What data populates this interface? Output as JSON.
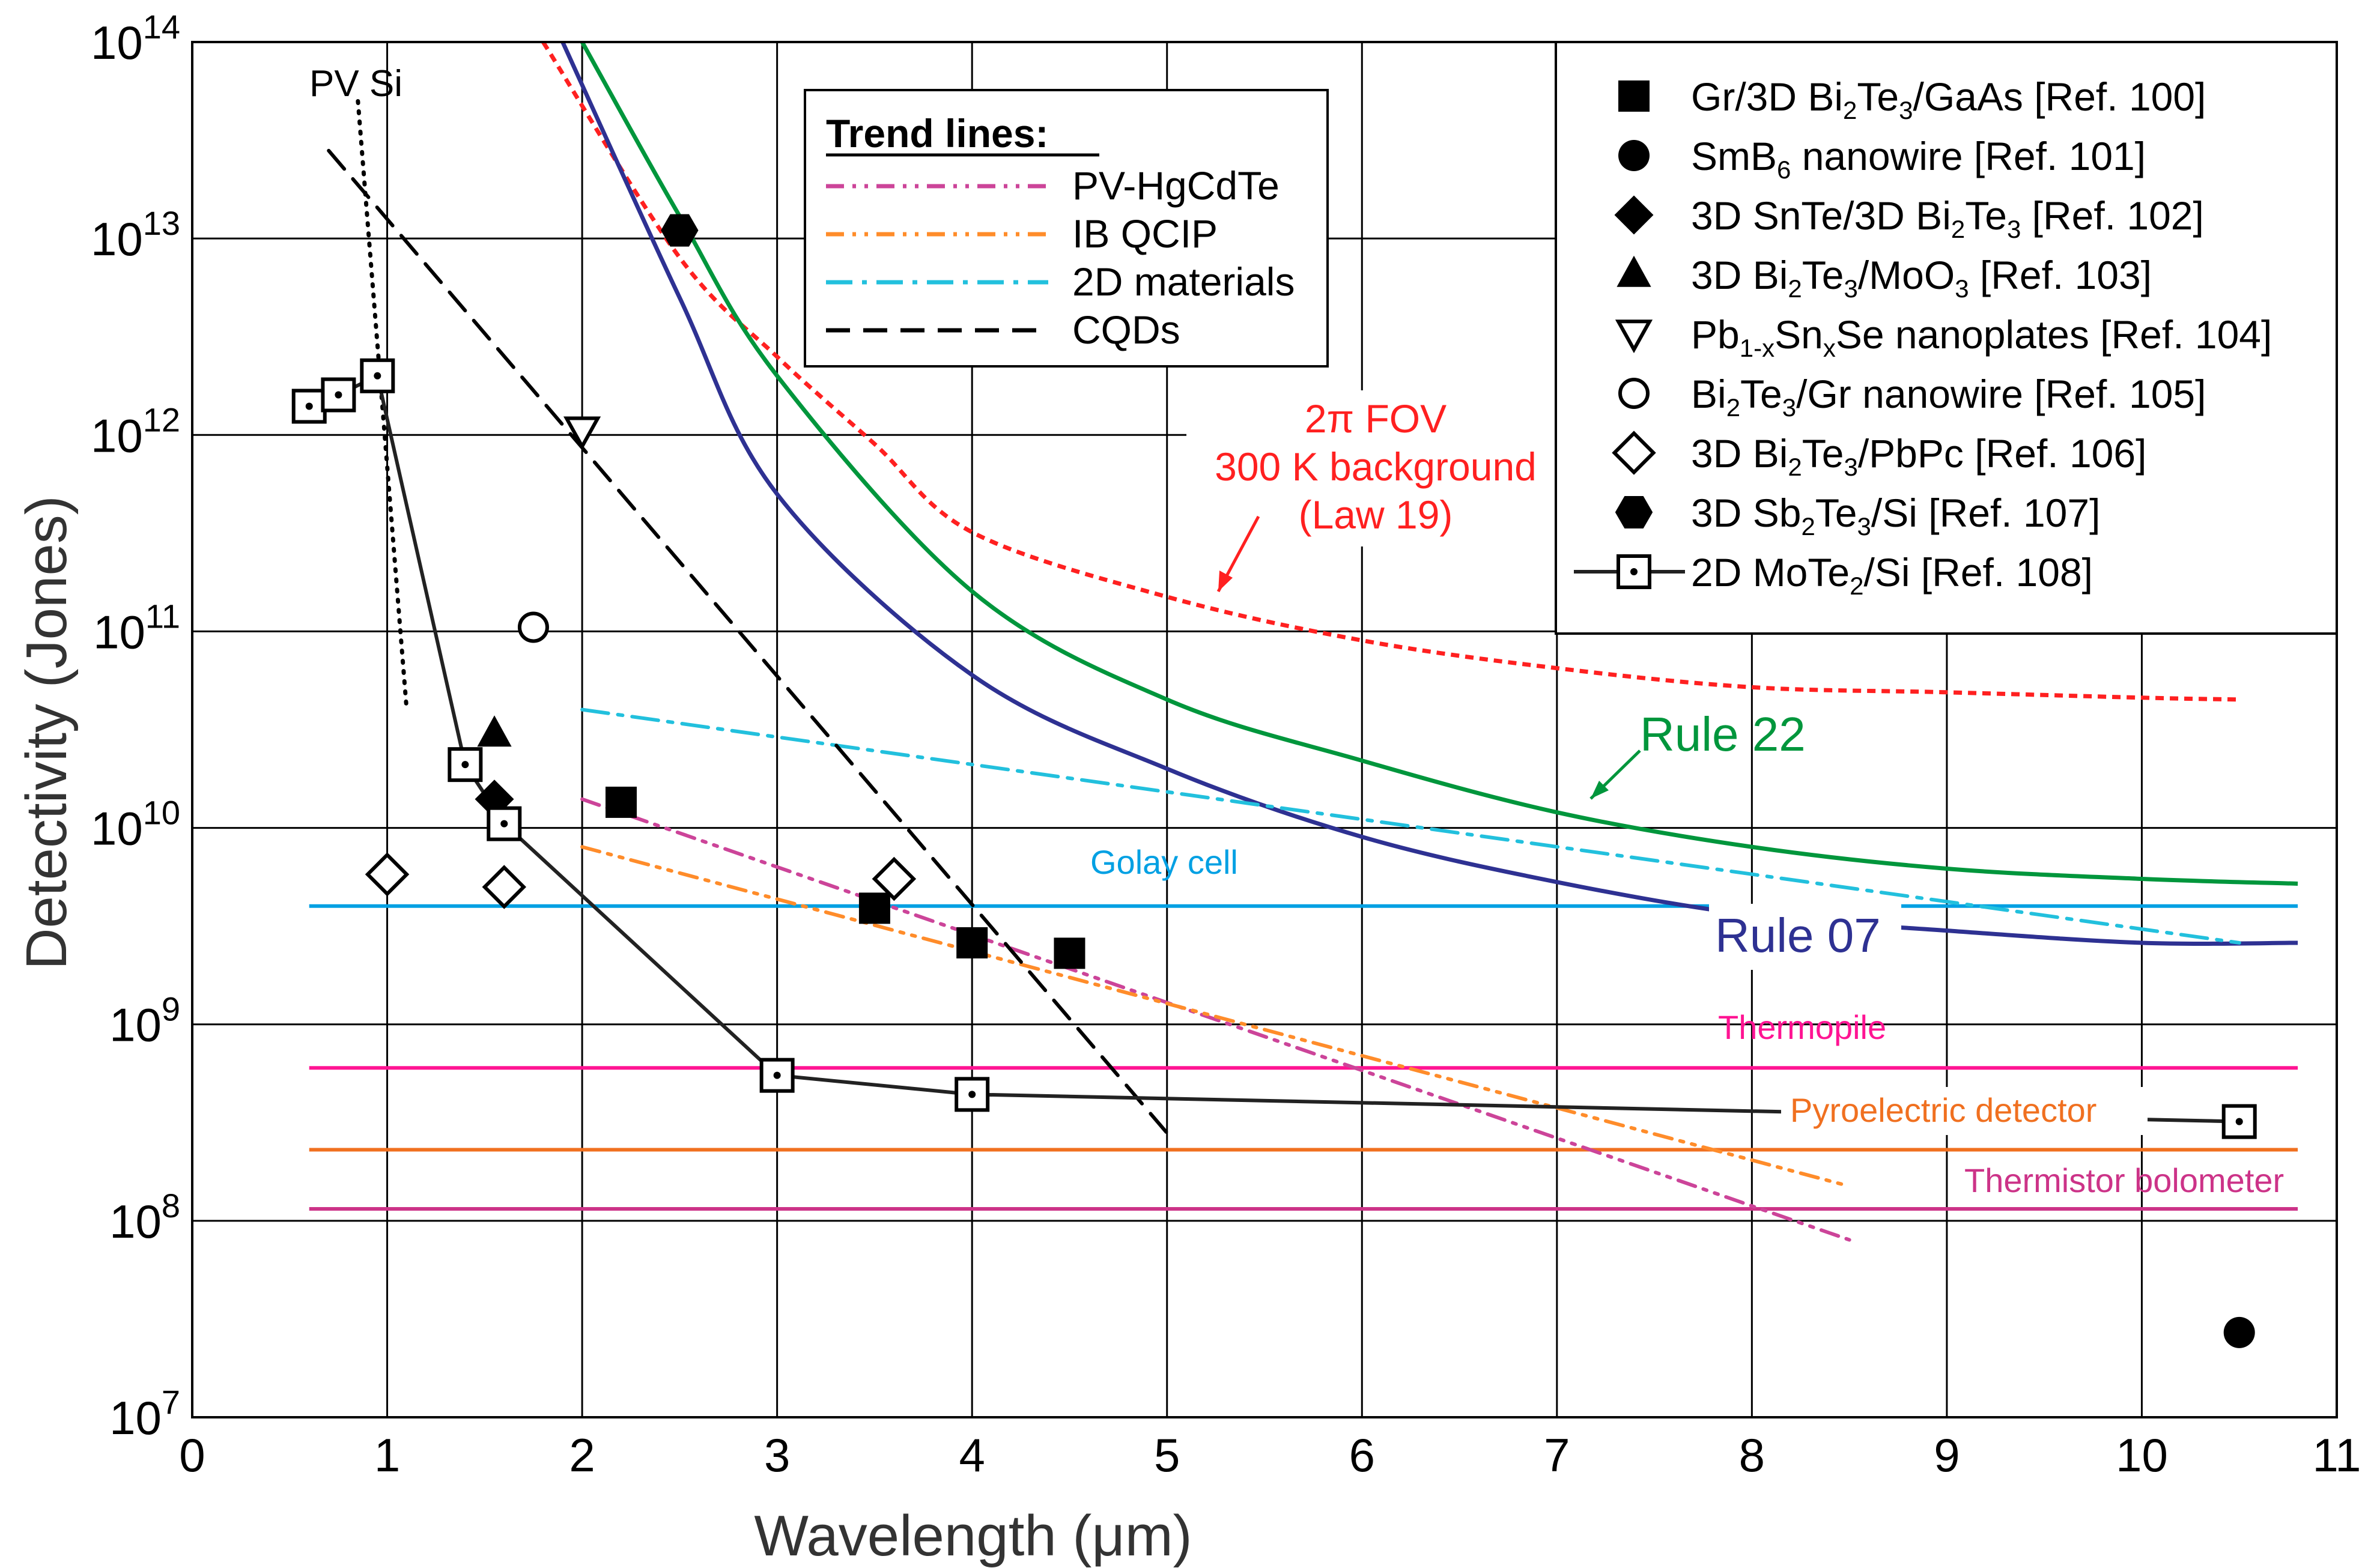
{
  "chart_data": {
    "type": "line",
    "xlabel": "Wavelength (μm)",
    "ylabel": "Detectivity (Jones)",
    "xlim": [
      0,
      11
    ],
    "ylim": [
      10000000.0,
      100000000000000.0
    ],
    "yscale": "log",
    "x_ticks": [
      "0",
      "1",
      "2",
      "3",
      "4",
      "5",
      "6",
      "7",
      "8",
      "9",
      "10",
      "11"
    ],
    "y_ticks": [
      {
        "base": "10",
        "exp": "7"
      },
      {
        "base": "10",
        "exp": "8"
      },
      {
        "base": "10",
        "exp": "9"
      },
      {
        "base": "10",
        "exp": "10"
      },
      {
        "base": "10",
        "exp": "11"
      },
      {
        "base": "10",
        "exp": "12"
      },
      {
        "base": "10",
        "exp": "13"
      },
      {
        "base": "10",
        "exp": "14"
      }
    ],
    "grid": true,
    "theory_curves": [
      {
        "name": "2π FOV 300 K background (Law 19)",
        "color": "#ff2020",
        "style": "dotted",
        "x": [
          1.8,
          2.5,
          3,
          3.5,
          4,
          5,
          6,
          7,
          8,
          9,
          10,
          10.5
        ],
        "y": [
          100000000000000.0,
          8000000000000.0,
          2500000000000.0,
          900000000000.0,
          320000000000.0,
          150000000000.0,
          90000000000.0,
          65000000000.0,
          52000000000.0,
          49000000000.0,
          46000000000.0,
          45000000000.0
        ]
      },
      {
        "name": "Rule 22",
        "color": "#00963c",
        "style": "solid",
        "x": [
          2,
          2.5,
          3,
          4,
          5,
          6,
          7,
          8,
          9,
          10,
          10.8
        ],
        "y": [
          100000000000000.0,
          13000000000000.0,
          2000000000000.0,
          160000000000.0,
          45000000000.0,
          22000000000.0,
          12000000000.0,
          8000000000.0,
          6200000000.0,
          5500000000.0,
          5200000000.0
        ]
      },
      {
        "name": "Rule 07",
        "color": "#2e3192",
        "style": "solid",
        "x": [
          1.9,
          2.5,
          3,
          4,
          5,
          6,
          7,
          8,
          9,
          10,
          10.8
        ],
        "y": [
          100000000000000.0,
          5000000000000.0,
          500000000000.0,
          60000000000.0,
          20000000000.0,
          9000000000.0,
          5300000000.0,
          3600000000.0,
          3000000000.0,
          2600000000.0,
          2600000000.0
        ]
      }
    ],
    "trend_lines_title": "Trend lines:",
    "trend_lines": [
      {
        "name": "PV-HgCdTe",
        "color": "#cc4499",
        "style": "dash-dot-dot",
        "x": [
          2,
          8.5
        ],
        "y": [
          14000000000.0,
          80000000.0
        ]
      },
      {
        "name": "IB QCIP",
        "color": "#ff8c2a",
        "style": "dash-dot-dot",
        "x": [
          2,
          8.5
        ],
        "y": [
          8000000000.0,
          150000000.0
        ]
      },
      {
        "name": "2D materials",
        "color": "#22c0dd",
        "style": "dash-dot",
        "x": [
          2,
          10.5
        ],
        "y": [
          40000000000.0,
          2600000000.0
        ]
      },
      {
        "name": "CQDs",
        "color": "#000000",
        "style": "dashed",
        "x": [
          0.7,
          5
        ],
        "y": [
          28000000000000.0,
          280000000.0
        ]
      }
    ],
    "reference_lines": [
      {
        "name": "PV Si",
        "color": "#000000",
        "style": "dotted",
        "x": [
          0.85,
          1.1
        ],
        "y": [
          50000000000000.0,
          40000000000.0
        ]
      }
    ],
    "horizontal_lines": [
      {
        "name": "Golay cell",
        "color": "#00a0e3",
        "y": 4000000000.0,
        "x": [
          0.6,
          10.8
        ]
      },
      {
        "name": "Thermopile",
        "color": "#ff1493",
        "y": 600000000.0,
        "x": [
          0.6,
          10.8
        ]
      },
      {
        "name": "Pyroelectric detector",
        "color": "#f07020",
        "y": 230000000.0,
        "x": [
          0.6,
          10.8
        ]
      },
      {
        "name": "Thermistor bolometer",
        "color": "#cc3388",
        "y": 115000000.0,
        "x": [
          0.6,
          10.8
        ]
      }
    ],
    "scatter_series": [
      {
        "name": "Gr/3D Bi2Te3/GaAs [Ref. 100]",
        "marker": "square-filled",
        "points": [
          [
            2.2,
            13500000000.0
          ],
          [
            3.5,
            3900000000.0
          ],
          [
            4,
            2600000000.0
          ],
          [
            4.5,
            2300000000.0
          ]
        ]
      },
      {
        "name": "SmB6 nanowire [Ref. 101]",
        "marker": "circle-filled",
        "points": [
          [
            10.5,
            27000000.0
          ]
        ]
      },
      {
        "name": "3D SnTe/3D Bi2Te3 [Ref. 102]",
        "marker": "diamond-filled",
        "points": [
          [
            1.55,
            14000000000.0
          ]
        ]
      },
      {
        "name": "3D Bi2Te3/MoO3 [Ref. 103]",
        "marker": "triangle-filled",
        "points": [
          [
            1.55,
            30000000000.0
          ]
        ]
      },
      {
        "name": "Pb1-xSnxSe nanoplates [Ref. 104]",
        "marker": "triangle-down-open",
        "points": [
          [
            2,
            1050000000000.0
          ]
        ]
      },
      {
        "name": "Bi2Te3/Gr nanowire [Ref. 105]",
        "marker": "circle-open",
        "points": [
          [
            1.75,
            105000000000.0
          ]
        ]
      },
      {
        "name": "3D Bi2Te3/PbPc [Ref. 106]",
        "marker": "diamond-open",
        "points": [
          [
            1,
            5800000000.0
          ],
          [
            1.6,
            5000000000.0
          ],
          [
            3.6,
            5500000000.0
          ]
        ]
      },
      {
        "name": "3D Sb2Te3/Si [Ref. 107]",
        "marker": "hexagon-filled",
        "points": [
          [
            2.5,
            11000000000000.0
          ]
        ]
      },
      {
        "name": "2D MoTe2/Si [Ref. 108]",
        "marker": "square-dot-line",
        "points": [
          [
            0.6,
            1400000000000.0
          ],
          [
            0.75,
            1600000000000.0
          ],
          [
            0.95,
            2000000000000.0
          ],
          [
            1.4,
            21000000000.0
          ],
          [
            1.6,
            10500000000.0
          ],
          [
            3,
            550000000.0
          ],
          [
            4,
            440000000.0
          ],
          [
            10.5,
            320000000.0
          ]
        ]
      }
    ],
    "legend": [
      {
        "marker": "square-filled",
        "parts": [
          {
            "t": "Gr/3D Bi"
          },
          {
            "t": "2",
            "sub": true
          },
          {
            "t": "Te"
          },
          {
            "t": "3",
            "sub": true
          },
          {
            "t": "/GaAs [Ref. 100]"
          }
        ]
      },
      {
        "marker": "circle-filled",
        "parts": [
          {
            "t": "SmB"
          },
          {
            "t": "6",
            "sub": true
          },
          {
            "t": " nanowire [Ref. 101]"
          }
        ]
      },
      {
        "marker": "diamond-filled",
        "parts": [
          {
            "t": "3D SnTe/3D Bi"
          },
          {
            "t": "2",
            "sub": true
          },
          {
            "t": "Te"
          },
          {
            "t": "3",
            "sub": true
          },
          {
            "t": " [Ref. 102]"
          }
        ]
      },
      {
        "marker": "triangle-filled",
        "parts": [
          {
            "t": "3D Bi"
          },
          {
            "t": "2",
            "sub": true
          },
          {
            "t": "Te"
          },
          {
            "t": "3",
            "sub": true
          },
          {
            "t": "/MoO"
          },
          {
            "t": "3",
            "sub": true
          },
          {
            "t": " [Ref. 103]"
          }
        ]
      },
      {
        "marker": "triangle-down-open",
        "parts": [
          {
            "t": "Pb"
          },
          {
            "t": "1-x",
            "sub": true
          },
          {
            "t": "Sn"
          },
          {
            "t": "x",
            "sub": true
          },
          {
            "t": "Se nanoplates [Ref. 104]"
          }
        ]
      },
      {
        "marker": "circle-open",
        "parts": [
          {
            "t": "Bi"
          },
          {
            "t": "2",
            "sub": true
          },
          {
            "t": "Te"
          },
          {
            "t": "3",
            "sub": true
          },
          {
            "t": "/Gr nanowire [Ref. 105]"
          }
        ]
      },
      {
        "marker": "diamond-open",
        "parts": [
          {
            "t": "3D Bi"
          },
          {
            "t": "2",
            "sub": true
          },
          {
            "t": "Te"
          },
          {
            "t": "3",
            "sub": true
          },
          {
            "t": "/PbPc [Ref. 106]"
          }
        ]
      },
      {
        "marker": "hexagon-filled",
        "parts": [
          {
            "t": "3D Sb"
          },
          {
            "t": "2",
            "sub": true
          },
          {
            "t": "Te"
          },
          {
            "t": "3",
            "sub": true
          },
          {
            "t": "/Si [Ref. 107]"
          }
        ]
      },
      {
        "marker": "square-dot-line",
        "parts": [
          {
            "t": "2D MoTe"
          },
          {
            "t": "2",
            "sub": true
          },
          {
            "t": "/Si [Ref. 108]"
          }
        ]
      }
    ],
    "annotations": {
      "pv_si": "PV Si",
      "fov_line1": "2π FOV",
      "fov_line2": "300 K background",
      "fov_line3": "(Law 19)",
      "rule22": "Rule 22",
      "rule07": "Rule 07",
      "golay": "Golay cell",
      "thermopile": "Thermopile",
      "pyro": "Pyroelectric detector",
      "thermistor": "Thermistor bolometer"
    },
    "colors": {
      "fov": "#ff2020",
      "rule22": "#00963c",
      "rule07": "#2e3192",
      "golay": "#00a0e3",
      "thermopile": "#ff1493",
      "pyro": "#f07020",
      "thermistor": "#cc3388"
    }
  }
}
